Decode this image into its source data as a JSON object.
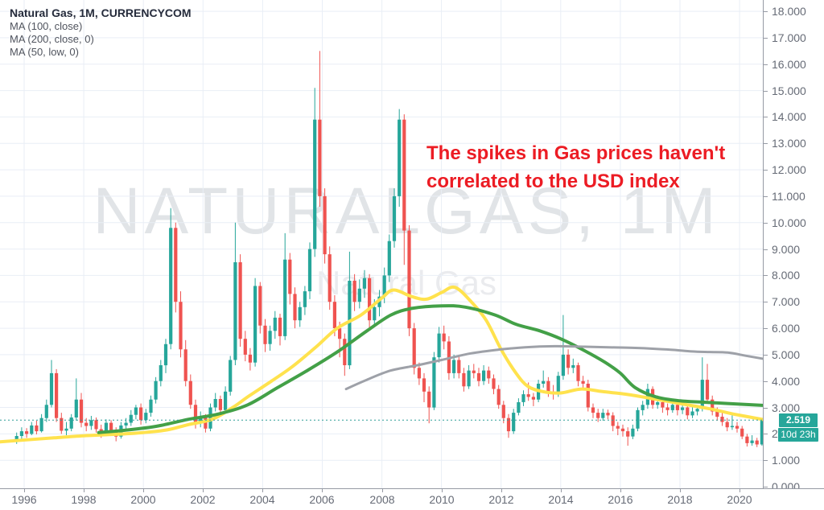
{
  "legend": {
    "title": "Natural Gas, 1M, CURRENCYCOM",
    "indicators": [
      "MA (100, close)",
      "MA (200, close, 0)",
      "MA (50, low, 0)"
    ]
  },
  "watermark": {
    "symbol": "NATURALGAS, 1M",
    "name": "Natural Gas"
  },
  "annotation": {
    "line1": "The spikes in Gas prices haven't",
    "line2": "correlated to the USD index",
    "color": "#ec1c24"
  },
  "price_scale": {
    "badge_value": "2.519",
    "countdown": "10d 23h",
    "badge_color": "#26a69a"
  },
  "chart_data": {
    "type": "candlestick",
    "title": "Natural Gas, 1M, CURRENCYCOM",
    "symbol": "Natural Gas",
    "interval": "1M",
    "grid": true,
    "xlim": [
      1995.19,
      2020.78
    ],
    "ylim": [
      -0.06,
      18.43
    ],
    "x_axis": {
      "tick_labels": [
        "1996",
        "1998",
        "2000",
        "2002",
        "2004",
        "2006",
        "2008",
        "2010",
        "2012",
        "2014",
        "2016",
        "2018",
        "2020"
      ]
    },
    "y_axis": {
      "tick_labels": [
        "18.000",
        "17.000",
        "16.000",
        "15.000",
        "14.000",
        "13.000",
        "12.000",
        "11.000",
        "10.000",
        "9.000",
        "8.000",
        "7.000",
        "6.000",
        "5.000",
        "4.000",
        "3.000",
        "2.000",
        "1.000",
        "0.000"
      ]
    },
    "last_price": 2.519,
    "candle_start_year": 1995.75,
    "candle_step_years": 0.16667,
    "colors": {
      "up": "#26a69a",
      "down": "#ef5350",
      "grid": "#e9eef6",
      "axis_text": "#666b76",
      "border": "#969aa4",
      "last_price_line": "#2f9e97"
    },
    "candles": [
      [
        1.75,
        2.05,
        1.62,
        1.92
      ],
      [
        1.92,
        2.25,
        1.8,
        2.1
      ],
      [
        2.1,
        2.22,
        1.85,
        2.0
      ],
      [
        2.0,
        2.45,
        1.95,
        2.32
      ],
      [
        2.32,
        2.5,
        1.98,
        2.1
      ],
      [
        2.1,
        2.75,
        2.05,
        2.6
      ],
      [
        2.6,
        3.3,
        2.45,
        3.1
      ],
      [
        3.1,
        4.8,
        3.0,
        4.3
      ],
      [
        4.3,
        4.45,
        2.45,
        2.6
      ],
      [
        2.6,
        2.8,
        2.0,
        2.12
      ],
      [
        2.12,
        2.45,
        1.95,
        2.2
      ],
      [
        2.2,
        2.75,
        2.1,
        2.62
      ],
      [
        2.62,
        4.1,
        2.5,
        3.3
      ],
      [
        3.3,
        3.55,
        2.25,
        2.42
      ],
      [
        2.42,
        2.6,
        2.1,
        2.3
      ],
      [
        2.3,
        2.68,
        2.15,
        2.52
      ],
      [
        2.52,
        2.62,
        2.05,
        2.18
      ],
      [
        2.18,
        2.35,
        1.85,
        2.02
      ],
      [
        2.02,
        2.55,
        1.95,
        2.42
      ],
      [
        2.42,
        2.52,
        1.95,
        2.1
      ],
      [
        2.1,
        2.25,
        1.72,
        1.9
      ],
      [
        1.9,
        2.45,
        1.82,
        2.32
      ],
      [
        2.32,
        2.6,
        2.15,
        2.42
      ],
      [
        2.42,
        2.9,
        2.3,
        2.72
      ],
      [
        2.72,
        3.1,
        2.55,
        3.0
      ],
      [
        3.0,
        3.15,
        2.35,
        2.52
      ],
      [
        2.52,
        2.95,
        2.4,
        2.8
      ],
      [
        2.8,
        3.45,
        2.65,
        3.3
      ],
      [
        3.3,
        4.15,
        3.15,
        4.0
      ],
      [
        4.0,
        4.8,
        3.8,
        4.6
      ],
      [
        4.6,
        5.6,
        4.3,
        5.4
      ],
      [
        5.4,
        10.55,
        5.2,
        9.8
      ],
      [
        9.8,
        10.0,
        6.6,
        7.0
      ],
      [
        7.0,
        7.4,
        4.9,
        5.2
      ],
      [
        5.2,
        5.55,
        3.8,
        4.0
      ],
      [
        4.0,
        4.25,
        2.95,
        3.1
      ],
      [
        3.1,
        3.3,
        2.2,
        2.4
      ],
      [
        2.4,
        2.85,
        2.25,
        2.62
      ],
      [
        2.62,
        2.75,
        2.05,
        2.2
      ],
      [
        2.2,
        3.15,
        2.1,
        3.0
      ],
      [
        3.0,
        3.55,
        2.85,
        3.32
      ],
      [
        3.32,
        3.45,
        2.7,
        2.9
      ],
      [
        2.9,
        3.8,
        2.8,
        3.6
      ],
      [
        3.6,
        4.95,
        3.45,
        4.8
      ],
      [
        4.8,
        10.0,
        4.6,
        8.5
      ],
      [
        8.5,
        8.8,
        5.3,
        5.6
      ],
      [
        5.6,
        5.9,
        4.75,
        5.0
      ],
      [
        5.0,
        5.25,
        4.4,
        4.7
      ],
      [
        4.7,
        7.9,
        4.55,
        7.6
      ],
      [
        7.6,
        7.75,
        5.8,
        6.1
      ],
      [
        6.1,
        6.35,
        5.1,
        5.4
      ],
      [
        5.4,
        6.1,
        5.15,
        5.9
      ],
      [
        5.9,
        6.65,
        5.6,
        6.4
      ],
      [
        6.4,
        6.55,
        5.35,
        5.7
      ],
      [
        5.7,
        9.6,
        5.55,
        8.6
      ],
      [
        8.6,
        8.85,
        6.9,
        7.3
      ],
      [
        7.3,
        7.55,
        6.0,
        6.3
      ],
      [
        6.3,
        7.0,
        6.05,
        6.8
      ],
      [
        6.8,
        7.6,
        6.5,
        7.4
      ],
      [
        7.4,
        9.25,
        7.1,
        9.0
      ],
      [
        9.0,
        15.1,
        8.7,
        13.9
      ],
      [
        13.9,
        16.5,
        10.6,
        11.0
      ],
      [
        11.0,
        11.3,
        8.45,
        8.8
      ],
      [
        8.8,
        9.1,
        6.7,
        7.0
      ],
      [
        7.0,
        7.25,
        5.7,
        6.0
      ],
      [
        6.0,
        6.25,
        4.9,
        5.6
      ],
      [
        5.6,
        5.8,
        4.2,
        4.6
      ],
      [
        4.6,
        8.9,
        4.45,
        7.8
      ],
      [
        7.8,
        8.05,
        6.65,
        7.0
      ],
      [
        7.0,
        7.85,
        6.75,
        7.5
      ],
      [
        7.5,
        8.2,
        7.15,
        7.9
      ],
      [
        7.9,
        8.05,
        6.0,
        6.3
      ],
      [
        6.3,
        7.1,
        6.05,
        6.8
      ],
      [
        6.8,
        7.45,
        6.45,
        7.2
      ],
      [
        7.2,
        8.3,
        6.95,
        8.0
      ],
      [
        8.0,
        9.55,
        7.75,
        9.3
      ],
      [
        9.3,
        11.3,
        9.05,
        11.0
      ],
      [
        11.0,
        14.3,
        10.6,
        13.9
      ],
      [
        13.9,
        14.1,
        8.4,
        9.7
      ],
      [
        9.7,
        9.9,
        5.7,
        6.0
      ],
      [
        6.0,
        6.2,
        4.25,
        4.5
      ],
      [
        4.5,
        4.7,
        3.85,
        4.1
      ],
      [
        4.1,
        4.3,
        3.2,
        3.6
      ],
      [
        3.6,
        3.8,
        2.4,
        3.0
      ],
      [
        3.0,
        5.1,
        2.9,
        4.9
      ],
      [
        4.9,
        6.05,
        4.7,
        5.8
      ],
      [
        5.8,
        6.1,
        5.2,
        5.5
      ],
      [
        5.5,
        5.7,
        4.05,
        4.3
      ],
      [
        4.3,
        5.0,
        4.1,
        4.8
      ],
      [
        4.8,
        4.95,
        4.1,
        4.3
      ],
      [
        4.3,
        4.5,
        3.6,
        3.8
      ],
      [
        3.8,
        4.6,
        3.7,
        4.4
      ],
      [
        4.4,
        4.65,
        4.1,
        4.3
      ],
      [
        4.3,
        4.5,
        3.8,
        4.0
      ],
      [
        4.0,
        4.6,
        3.85,
        4.4
      ],
      [
        4.4,
        4.55,
        3.9,
        4.1
      ],
      [
        4.1,
        4.25,
        3.5,
        3.7
      ],
      [
        3.7,
        3.85,
        2.95,
        3.1
      ],
      [
        3.1,
        3.25,
        2.4,
        2.6
      ],
      [
        2.6,
        2.75,
        1.85,
        2.1
      ],
      [
        2.1,
        2.95,
        2.0,
        2.8
      ],
      [
        2.8,
        3.35,
        2.7,
        3.2
      ],
      [
        3.2,
        3.65,
        3.05,
        3.5
      ],
      [
        3.5,
        3.95,
        3.25,
        3.4
      ],
      [
        3.4,
        3.55,
        3.05,
        3.3
      ],
      [
        3.3,
        4.05,
        3.2,
        3.9
      ],
      [
        3.9,
        4.4,
        3.75,
        4.0
      ],
      [
        4.0,
        4.15,
        3.4,
        3.6
      ],
      [
        3.6,
        3.85,
        3.3,
        3.5
      ],
      [
        3.5,
        4.35,
        3.4,
        4.2
      ],
      [
        4.2,
        6.5,
        4.05,
        5.0
      ],
      [
        5.0,
        5.2,
        4.25,
        4.5
      ],
      [
        4.5,
        4.85,
        4.3,
        4.6
      ],
      [
        4.6,
        4.7,
        3.8,
        4.0
      ],
      [
        4.0,
        4.2,
        3.7,
        3.9
      ],
      [
        3.9,
        4.05,
        2.85,
        3.0
      ],
      [
        3.0,
        3.15,
        2.6,
        2.8
      ],
      [
        2.8,
        2.95,
        2.45,
        2.6
      ],
      [
        2.6,
        2.95,
        2.5,
        2.8
      ],
      [
        2.8,
        2.92,
        2.55,
        2.7
      ],
      [
        2.7,
        2.82,
        2.1,
        2.3
      ],
      [
        2.3,
        2.45,
        1.95,
        2.2
      ],
      [
        2.2,
        2.35,
        1.9,
        2.1
      ],
      [
        2.1,
        2.25,
        1.55,
        1.9
      ],
      [
        1.9,
        2.35,
        1.8,
        2.2
      ],
      [
        2.2,
        3.0,
        2.1,
        2.9
      ],
      [
        2.9,
        3.25,
        2.7,
        3.1
      ],
      [
        3.1,
        3.9,
        2.95,
        3.7
      ],
      [
        3.7,
        3.8,
        2.95,
        3.1
      ],
      [
        3.1,
        3.45,
        2.95,
        3.2
      ],
      [
        3.2,
        3.35,
        2.8,
        3.0
      ],
      [
        3.0,
        3.15,
        2.7,
        2.9
      ],
      [
        2.9,
        3.25,
        2.8,
        3.1
      ],
      [
        3.1,
        3.2,
        2.7,
        2.9
      ],
      [
        2.9,
        3.15,
        2.75,
        3.0
      ],
      [
        3.0,
        3.1,
        2.55,
        2.7
      ],
      [
        2.7,
        3.0,
        2.6,
        2.85
      ],
      [
        2.85,
        3.08,
        2.7,
        2.95
      ],
      [
        2.95,
        4.9,
        2.85,
        4.05
      ],
      [
        4.05,
        4.65,
        3.15,
        3.3
      ],
      [
        3.3,
        3.45,
        2.7,
        2.85
      ],
      [
        2.85,
        3.0,
        2.5,
        2.65
      ],
      [
        2.65,
        2.8,
        2.3,
        2.45
      ],
      [
        2.45,
        2.6,
        2.1,
        2.25
      ],
      [
        2.25,
        2.7,
        2.15,
        2.3
      ],
      [
        2.3,
        2.45,
        2.05,
        2.2
      ],
      [
        2.2,
        2.3,
        1.8,
        1.9
      ],
      [
        1.9,
        2.0,
        1.52,
        1.65
      ],
      [
        1.65,
        1.95,
        1.55,
        1.75
      ],
      [
        1.75,
        1.85,
        1.5,
        1.6
      ],
      [
        1.6,
        2.55,
        1.55,
        2.519
      ]
    ],
    "series": [
      {
        "name": "MA (100, close)",
        "color": "#ffe24d",
        "width": 4,
        "points": [
          [
            1995.19,
            1.7
          ],
          [
            1997,
            1.85
          ],
          [
            1998,
            1.93
          ],
          [
            1999,
            1.98
          ],
          [
            2000,
            2.05
          ],
          [
            2000.8,
            2.15
          ],
          [
            2001.5,
            2.35
          ],
          [
            2002.3,
            2.55
          ],
          [
            2003,
            3.0
          ],
          [
            2003.5,
            3.4
          ],
          [
            2004.3,
            4.0
          ],
          [
            2005,
            4.55
          ],
          [
            2005.8,
            5.3
          ],
          [
            2006.5,
            6.0
          ],
          [
            2007.3,
            6.5
          ],
          [
            2008,
            7.15
          ],
          [
            2008.4,
            7.45
          ],
          [
            2009,
            7.2
          ],
          [
            2009.5,
            7.1
          ],
          [
            2010,
            7.35
          ],
          [
            2010.45,
            7.55
          ],
          [
            2011,
            7.0
          ],
          [
            2011.5,
            6.3
          ],
          [
            2012,
            5.2
          ],
          [
            2012.5,
            4.3
          ],
          [
            2012.9,
            3.8
          ],
          [
            2013.4,
            3.6
          ],
          [
            2014,
            3.55
          ],
          [
            2014.7,
            3.7
          ],
          [
            2015.4,
            3.6
          ],
          [
            2016.2,
            3.5
          ],
          [
            2017,
            3.35
          ],
          [
            2018,
            3.15
          ],
          [
            2019,
            2.95
          ],
          [
            2019.8,
            2.75
          ],
          [
            2020.76,
            2.55
          ]
        ]
      },
      {
        "name": "MA (200, close, 0)",
        "color": "#43a047",
        "width": 4,
        "points": [
          [
            1998.5,
            2.05
          ],
          [
            1999.5,
            2.15
          ],
          [
            2000.5,
            2.3
          ],
          [
            2001.5,
            2.55
          ],
          [
            2002.5,
            2.75
          ],
          [
            2003.5,
            3.1
          ],
          [
            2004.5,
            3.75
          ],
          [
            2005.5,
            4.4
          ],
          [
            2006.5,
            5.1
          ],
          [
            2007.5,
            5.9
          ],
          [
            2008.3,
            6.5
          ],
          [
            2009,
            6.75
          ],
          [
            2010,
            6.85
          ],
          [
            2010.8,
            6.8
          ],
          [
            2011.8,
            6.5
          ],
          [
            2012.5,
            6.15
          ],
          [
            2013.3,
            5.9
          ],
          [
            2014,
            5.6
          ],
          [
            2014.8,
            5.15
          ],
          [
            2015.5,
            4.7
          ],
          [
            2016,
            4.3
          ],
          [
            2016.5,
            3.75
          ],
          [
            2017.2,
            3.4
          ],
          [
            2018,
            3.25
          ],
          [
            2018.8,
            3.2
          ],
          [
            2019.6,
            3.15
          ],
          [
            2020.76,
            3.08
          ]
        ]
      },
      {
        "name": "MA (50, low, 0)",
        "color": "#9ea1a8",
        "width": 3,
        "points": [
          [
            2006.8,
            3.7
          ],
          [
            2007.5,
            4.05
          ],
          [
            2008.3,
            4.4
          ],
          [
            2009.2,
            4.6
          ],
          [
            2010,
            4.8
          ],
          [
            2011,
            5.05
          ],
          [
            2012,
            5.2
          ],
          [
            2012.8,
            5.28
          ],
          [
            2013.8,
            5.32
          ],
          [
            2014.8,
            5.3
          ],
          [
            2015.6,
            5.28
          ],
          [
            2016.4,
            5.26
          ],
          [
            2017.2,
            5.22
          ],
          [
            2017.8,
            5.18
          ],
          [
            2018.4,
            5.12
          ],
          [
            2019,
            5.1
          ],
          [
            2019.6,
            5.08
          ],
          [
            2020.2,
            4.96
          ],
          [
            2020.76,
            4.85
          ]
        ]
      }
    ]
  }
}
